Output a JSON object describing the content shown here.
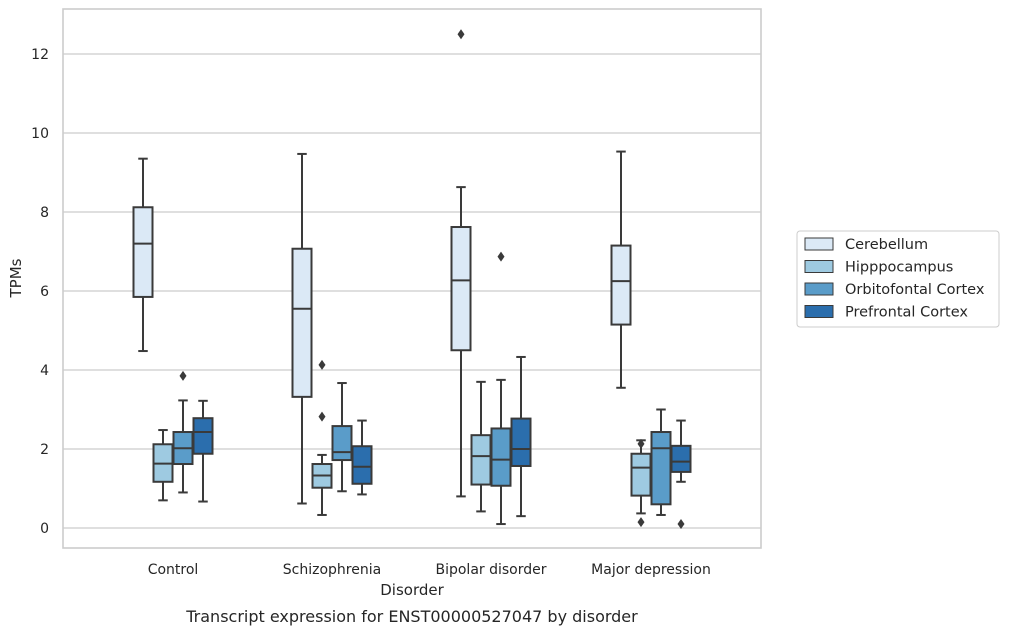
{
  "chart_data": {
    "type": "box",
    "xlabel": "Disorder",
    "ylabel": "TPMs",
    "caption": "Transcript expression for ENST00000527047 by disorder",
    "ylim": [
      -0.5,
      13.1
    ],
    "yticks": [
      0,
      2,
      4,
      6,
      8,
      10,
      12
    ],
    "grid": "horizontal",
    "legend_position": "right",
    "categories": [
      "Control",
      "Schizophrenia",
      "Bipolar disorder",
      "Major depression"
    ],
    "series": [
      {
        "name": "Cerebellum",
        "color": "#dbe9f6",
        "boxes": [
          {
            "whislo": 4.48,
            "q1": 5.85,
            "med": 7.2,
            "q3": 8.12,
            "whishi": 9.35,
            "fliers": []
          },
          {
            "whislo": 0.62,
            "q1": 3.32,
            "med": 5.55,
            "q3": 7.07,
            "whishi": 9.47,
            "fliers": []
          },
          {
            "whislo": 0.8,
            "q1": 4.5,
            "med": 6.27,
            "q3": 7.62,
            "whishi": 8.63,
            "fliers": [
              12.5
            ]
          },
          {
            "whislo": 3.55,
            "q1": 5.15,
            "med": 6.25,
            "q3": 7.15,
            "whishi": 9.53,
            "fliers": []
          }
        ]
      },
      {
        "name": "Hipppocampus",
        "color": "#9ecae1",
        "boxes": [
          {
            "whislo": 0.7,
            "q1": 1.17,
            "med": 1.63,
            "q3": 2.12,
            "whishi": 2.48,
            "fliers": []
          },
          {
            "whislo": 0.33,
            "q1": 1.02,
            "med": 1.33,
            "q3": 1.62,
            "whishi": 1.85,
            "fliers": [
              4.13,
              2.82
            ]
          },
          {
            "whislo": 0.42,
            "q1": 1.1,
            "med": 1.82,
            "q3": 2.35,
            "whishi": 3.7,
            "fliers": []
          },
          {
            "whislo": 0.37,
            "q1": 0.82,
            "med": 1.53,
            "q3": 1.88,
            "whishi": 2.22,
            "fliers": [
              2.13,
              0.15
            ]
          }
        ]
      },
      {
        "name": "Orbitofontal Cortex",
        "color": "#5a9cc9",
        "boxes": [
          {
            "whislo": 0.9,
            "q1": 1.62,
            "med": 2.02,
            "q3": 2.43,
            "whishi": 3.23,
            "fliers": [
              3.85
            ]
          },
          {
            "whislo": 0.93,
            "q1": 1.72,
            "med": 1.92,
            "q3": 2.58,
            "whishi": 3.67,
            "fliers": []
          },
          {
            "whislo": 0.1,
            "q1": 1.07,
            "med": 1.73,
            "q3": 2.52,
            "whishi": 3.75,
            "fliers": [
              6.87
            ]
          },
          {
            "whislo": 0.33,
            "q1": 0.6,
            "med": 2.02,
            "q3": 2.43,
            "whishi": 3.0,
            "fliers": []
          }
        ]
      },
      {
        "name": "Prefrontal Cortex",
        "color": "#2b6ead",
        "boxes": [
          {
            "whislo": 0.67,
            "q1": 1.88,
            "med": 2.43,
            "q3": 2.78,
            "whishi": 3.22,
            "fliers": []
          },
          {
            "whislo": 0.85,
            "q1": 1.12,
            "med": 1.55,
            "q3": 2.07,
            "whishi": 2.72,
            "fliers": []
          },
          {
            "whislo": 0.3,
            "q1": 1.57,
            "med": 2.0,
            "q3": 2.77,
            "whishi": 4.33,
            "fliers": []
          },
          {
            "whislo": 1.17,
            "q1": 1.42,
            "med": 1.68,
            "q3": 2.08,
            "whishi": 2.72,
            "fliers": [
              0.1
            ]
          }
        ]
      }
    ]
  }
}
